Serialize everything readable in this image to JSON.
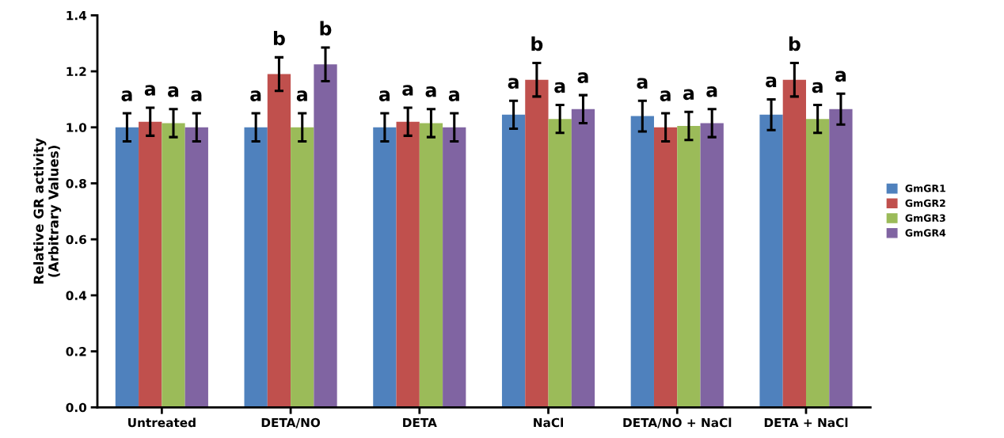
{
  "chart_data": {
    "type": "bar",
    "ylabel": "Relative GR activity\n(Arbitrary Values)",
    "categories": [
      "Untreated",
      "DETA/NO",
      "DETA",
      "NaCl",
      "DETA/NO + NaCl",
      "DETA + NaCl"
    ],
    "series": [
      {
        "name": "GmGR1",
        "color": "#4f81bd",
        "values": [
          1.0,
          1.0,
          1.0,
          1.045,
          1.04,
          1.045
        ],
        "errors": [
          0.05,
          0.05,
          0.05,
          0.05,
          0.055,
          0.055
        ],
        "value_labels": [
          "a",
          "a",
          "a",
          "a",
          "a",
          "a"
        ]
      },
      {
        "name": "GmGR2",
        "color": "#c0504d",
        "values": [
          1.02,
          1.19,
          1.02,
          1.17,
          1.0,
          1.17
        ],
        "errors": [
          0.05,
          0.06,
          0.05,
          0.06,
          0.05,
          0.06
        ],
        "value_labels": [
          "a",
          "b",
          "a",
          "b",
          "a",
          "b"
        ]
      },
      {
        "name": "GmGR3",
        "color": "#9bbb59",
        "values": [
          1.015,
          1.0,
          1.015,
          1.03,
          1.005,
          1.03
        ],
        "errors": [
          0.05,
          0.05,
          0.05,
          0.05,
          0.05,
          0.05
        ],
        "value_labels": [
          "a",
          "a",
          "a",
          "a",
          "a",
          "a"
        ]
      },
      {
        "name": "GmGR4",
        "color": "#8064a2",
        "values": [
          1.0,
          1.225,
          1.0,
          1.065,
          1.015,
          1.065
        ],
        "errors": [
          0.05,
          0.06,
          0.05,
          0.05,
          0.05,
          0.055
        ],
        "value_labels": [
          "a",
          "b",
          "a",
          "a",
          "a",
          "a"
        ]
      }
    ],
    "ylim": [
      0,
      1.4
    ],
    "yticks": [
      {
        "value": 0,
        "label": "0.0"
      },
      {
        "value": 0.2,
        "label": "0.2"
      },
      {
        "value": 0.4,
        "label": "0.4"
      },
      {
        "value": 0.6,
        "label": "0.6"
      },
      {
        "value": 0.8,
        "label": "0.8"
      },
      {
        "value": 1.0,
        "label": "1.0"
      },
      {
        "value": 1.2,
        "label": "1.2"
      },
      {
        "value": 1.4,
        "label": "1.4"
      }
    ],
    "grid": false,
    "legend": "right"
  }
}
